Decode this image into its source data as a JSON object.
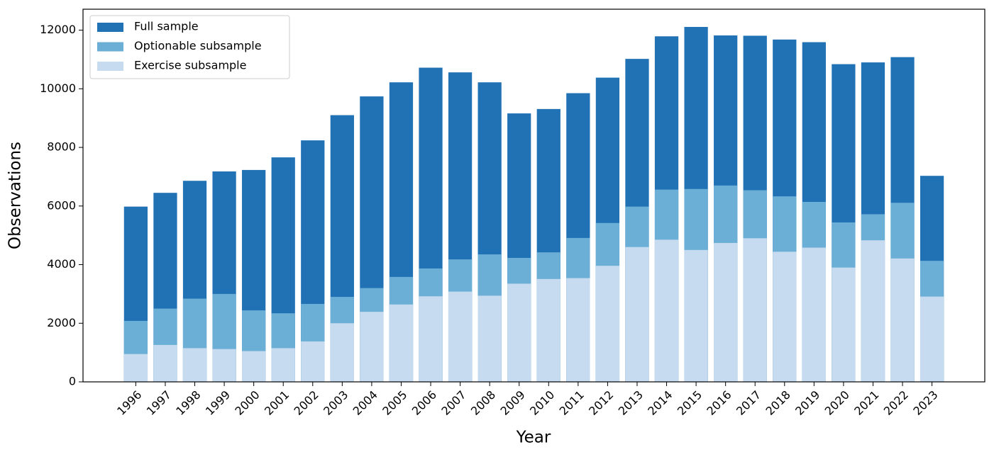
{
  "chart_data": {
    "type": "bar",
    "overlay": true,
    "x_label": "Year",
    "y_label": "Observations",
    "categories": [
      "1996",
      "1997",
      "1998",
      "1999",
      "2000",
      "2001",
      "2002",
      "2003",
      "2004",
      "2005",
      "2006",
      "2007",
      "2008",
      "2009",
      "2010",
      "2011",
      "2012",
      "2013",
      "2014",
      "2015",
      "2016",
      "2017",
      "2018",
      "2019",
      "2020",
      "2021",
      "2022",
      "2023"
    ],
    "series": [
      {
        "name": "Full sample",
        "color": "#2171b5",
        "values": [
          5980,
          6450,
          6860,
          7180,
          7230,
          7660,
          8240,
          9100,
          9740,
          10220,
          10720,
          10560,
          10220,
          9160,
          9310,
          9850,
          10380,
          11020,
          11790,
          12110,
          11820,
          11810,
          11680,
          11590,
          10840,
          10900,
          11080,
          7030
        ]
      },
      {
        "name": "Optionable subsample",
        "color": "#6baed6",
        "values": [
          2080,
          2500,
          2840,
          3000,
          2440,
          2340,
          2660,
          2900,
          3200,
          3580,
          3870,
          4180,
          4350,
          4230,
          4420,
          4910,
          5420,
          5980,
          6560,
          6580,
          6700,
          6540,
          6330,
          6140,
          5440,
          5720,
          6110,
          4130
        ]
      },
      {
        "name": "Exercise subsample",
        "color": "#c6dbef",
        "values": [
          950,
          1260,
          1150,
          1120,
          1050,
          1150,
          1380,
          2000,
          2390,
          2640,
          2920,
          3080,
          2940,
          3350,
          3510,
          3540,
          3960,
          4600,
          4850,
          4500,
          4740,
          4900,
          4440,
          4580,
          3900,
          4830,
          4210,
          2910
        ]
      }
    ],
    "ylim": [
      0,
      12715
    ],
    "yticks": [
      0,
      2000,
      4000,
      6000,
      8000,
      10000,
      12000
    ],
    "legend": "upper left",
    "grid": false
  }
}
